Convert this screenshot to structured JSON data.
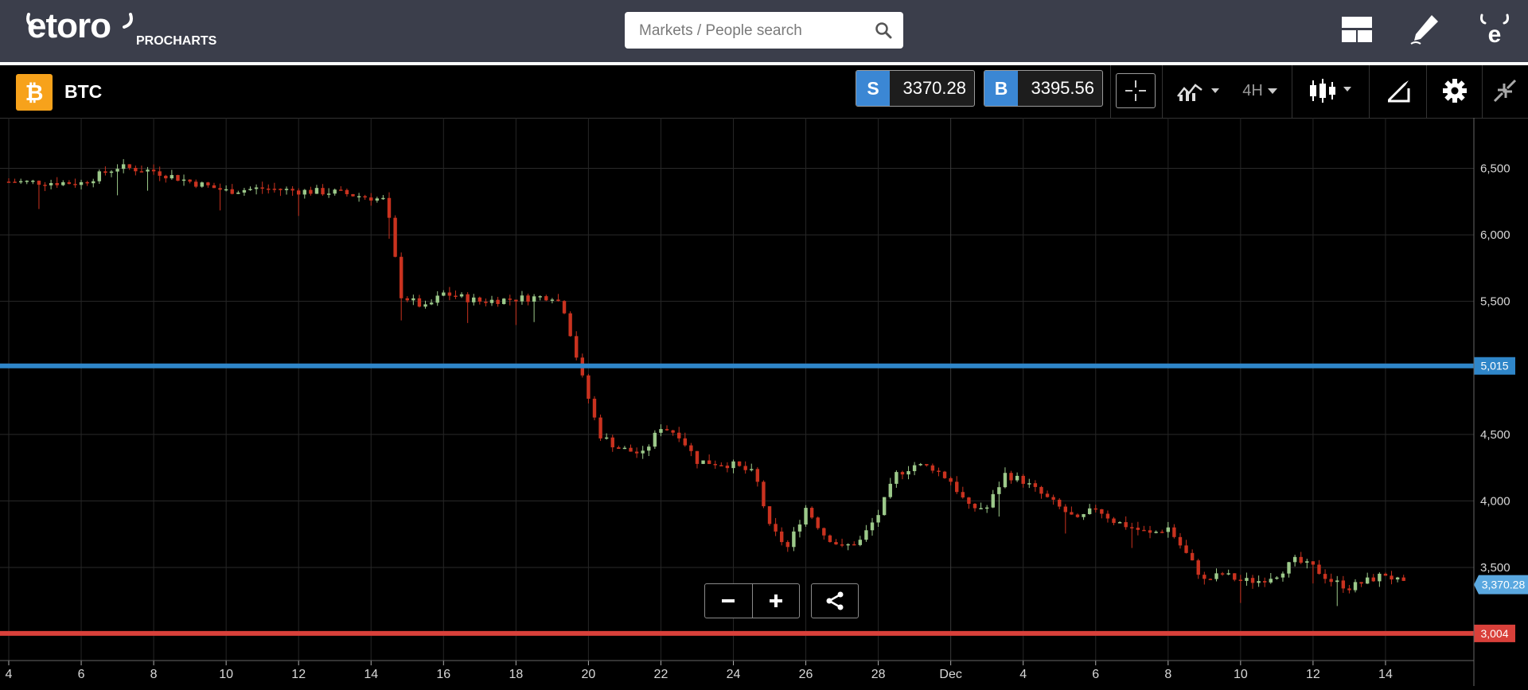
{
  "header": {
    "logo_text": "etoro",
    "procharts_label": "PROCHARTS",
    "search_placeholder": "Markets / People search",
    "icons": [
      "layout-icon",
      "pencil-icon",
      "etoro-e-icon"
    ]
  },
  "instrument": {
    "symbol": "BTC",
    "icon": "bitcoin-icon",
    "sell_tag": "S",
    "sell_price": "3370.28",
    "buy_tag": "B",
    "buy_price": "3395.56",
    "timeframe": "4H",
    "toolbar_icons": [
      "crosshair-icon",
      "indicators-icon",
      "timeframe-dropdown",
      "candles-icon",
      "drawing-icon",
      "settings-icon",
      "collapse-icon"
    ]
  },
  "colors": {
    "header_bg": "#3b3e4b",
    "bitcoin": "#f7a21b",
    "buy_sell_tag": "#3b87d4",
    "up_candle": "#9cc98a",
    "down_candle": "#c9321f",
    "blue_line": "#2f86c9",
    "red_line": "#d9403a",
    "current_price": "#5aa8e0"
  },
  "chart_data": {
    "type": "candlestick",
    "instrument": "BTC",
    "ylim": [
      2800,
      6880
    ],
    "y_ticks": [
      "6,500",
      "6,000",
      "5,500",
      "4,500",
      "4,000",
      "3,500"
    ],
    "x_ticks": [
      "4",
      "6",
      "8",
      "10",
      "12",
      "14",
      "16",
      "18",
      "20",
      "22",
      "24",
      "26",
      "28",
      "Dec",
      "4",
      "6",
      "8",
      "10",
      "12",
      "14"
    ],
    "horizontal_lines": [
      {
        "value": 5015,
        "label": "5,015",
        "color": "blue"
      },
      {
        "value": 3004,
        "label": "3,004",
        "color": "red"
      }
    ],
    "current_price": {
      "value": 3370.28,
      "label": "3,370.28"
    },
    "close_path": [
      [
        4,
        6400
      ],
      [
        6,
        6390
      ],
      [
        7,
        6510
      ],
      [
        8,
        6480
      ],
      [
        9,
        6400
      ],
      [
        10,
        6330
      ],
      [
        11,
        6350
      ],
      [
        12,
        6330
      ],
      [
        13,
        6320
      ],
      [
        14,
        6280
      ],
      [
        14.4,
        6260
      ],
      [
        14.6,
        5950
      ],
      [
        14.8,
        5550
      ],
      [
        15.5,
        5450
      ],
      [
        16,
        5560
      ],
      [
        17,
        5500
      ],
      [
        18,
        5520
      ],
      [
        19,
        5540
      ],
      [
        19.3,
        5470
      ],
      [
        19.8,
        4950
      ],
      [
        20.3,
        4500
      ],
      [
        20.8,
        4400
      ],
      [
        21.5,
        4350
      ],
      [
        22,
        4560
      ],
      [
        22.5,
        4500
      ],
      [
        23,
        4300
      ],
      [
        24,
        4270
      ],
      [
        24.6,
        4200
      ],
      [
        25,
        3800
      ],
      [
        25.5,
        3650
      ],
      [
        26,
        3950
      ],
      [
        26.5,
        3750
      ],
      [
        27,
        3650
      ],
      [
        27.5,
        3700
      ],
      [
        28,
        3900
      ],
      [
        28.5,
        4200
      ],
      [
        29,
        4270
      ],
      [
        29.5,
        4250
      ],
      [
        30,
        4150
      ],
      [
        30.5,
        3950
      ],
      [
        31,
        3950
      ],
      [
        31.5,
        4200
      ],
      [
        32,
        4150
      ],
      [
        32.5,
        4050
      ],
      [
        33,
        3950
      ],
      [
        33.5,
        3850
      ],
      [
        34,
        3950
      ],
      [
        34.5,
        3850
      ],
      [
        35,
        3800
      ],
      [
        35.5,
        3750
      ],
      [
        36,
        3800
      ],
      [
        36.5,
        3600
      ],
      [
        37,
        3400
      ],
      [
        37.5,
        3450
      ],
      [
        38,
        3400
      ],
      [
        38.5,
        3400
      ],
      [
        39,
        3450
      ],
      [
        39.5,
        3550
      ],
      [
        40,
        3500
      ],
      [
        40.5,
        3400
      ],
      [
        41,
        3350
      ],
      [
        41.5,
        3400
      ],
      [
        42,
        3450
      ],
      [
        42.5,
        3370
      ]
    ]
  }
}
